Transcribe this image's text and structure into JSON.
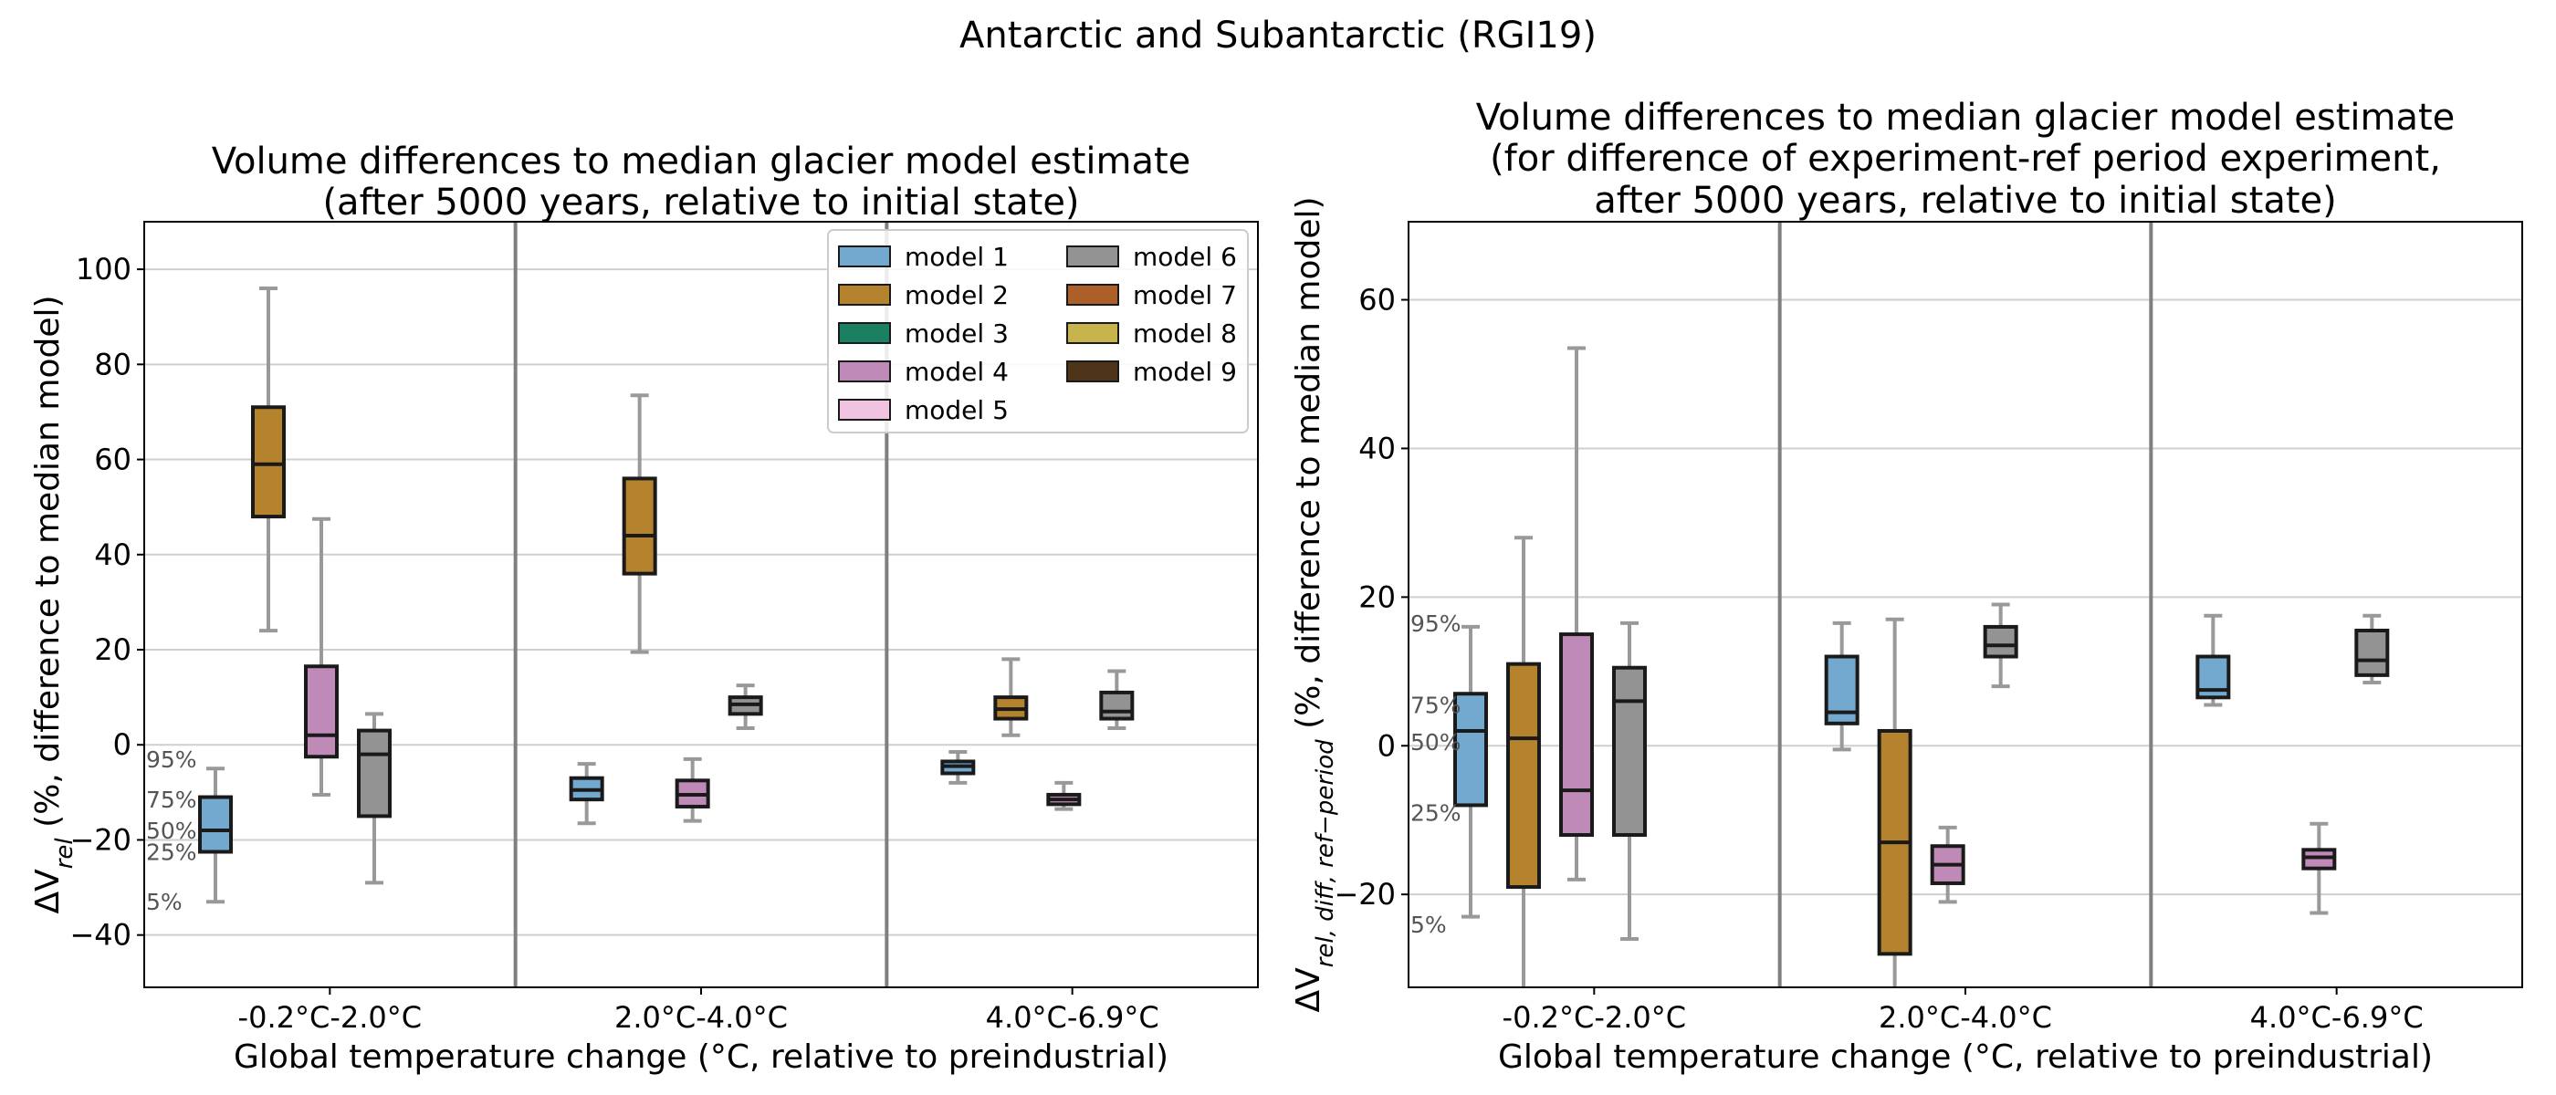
{
  "title": "Antarctic and Subantarctic (RGI19)",
  "legend": [
    {
      "name": "model 1",
      "color": "#74a9cf"
    },
    {
      "name": "model 2",
      "color": "#b5832e"
    },
    {
      "name": "model 3",
      "color": "#1b7f62"
    },
    {
      "name": "model 4",
      "color": "#c08ab8"
    },
    {
      "name": "model 5",
      "color": "#f0c3e0"
    },
    {
      "name": "model 6",
      "color": "#939393"
    },
    {
      "name": "model 7",
      "color": "#ad5f29"
    },
    {
      "name": "model 8",
      "color": "#c8b44d"
    },
    {
      "name": "model 9",
      "color": "#4e3519"
    }
  ],
  "percentile_labels": [
    "95%",
    "75%",
    "50%",
    "25%",
    "5%"
  ],
  "chart_data": [
    {
      "type": "box",
      "title_lines": [
        "Volume differences to median glacier model estimate",
        "(after 5000 years, relative to initial state)"
      ],
      "xlabel": "Global temperature change (°C, relative to preindustrial)",
      "ylabel": "ΔV_rel (%, difference to median model)",
      "ylim": [
        -51,
        110
      ],
      "yticks": [
        -40,
        -20,
        0,
        20,
        40,
        60,
        80,
        100
      ],
      "grid": "horizontal",
      "legend_position": "top-right",
      "categories": [
        "-0.2°C-2.0°C",
        "2.0°C-4.0°C",
        "4.0°C-6.9°C"
      ],
      "percentile_label_values": [
        -3,
        -11.5,
        -18,
        -22.5,
        -33
      ],
      "boxes": [
        {
          "category": 0,
          "model": "model 1",
          "p5": -33,
          "p25": -22.5,
          "p50": -18,
          "p75": -11,
          "p95": -5
        },
        {
          "category": 0,
          "model": "model 2",
          "p5": 24,
          "p25": 48,
          "p50": 59,
          "p75": 71,
          "p95": 96
        },
        {
          "category": 0,
          "model": "model 4",
          "p5": -10.5,
          "p25": -2.5,
          "p50": 2,
          "p75": 16.5,
          "p95": 47.5
        },
        {
          "category": 0,
          "model": "model 6",
          "p5": -29,
          "p25": -15,
          "p50": -2,
          "p75": 3,
          "p95": 6.5
        },
        {
          "category": 1,
          "model": "model 1",
          "p5": -16.5,
          "p25": -11.5,
          "p50": -9.5,
          "p75": -7,
          "p95": -4
        },
        {
          "category": 1,
          "model": "model 2",
          "p5": 19.5,
          "p25": 36,
          "p50": 44,
          "p75": 56,
          "p95": 73.5
        },
        {
          "category": 1,
          "model": "model 4",
          "p5": -16,
          "p25": -13,
          "p50": -10.5,
          "p75": -7.5,
          "p95": -3
        },
        {
          "category": 1,
          "model": "model 6",
          "p5": 3.5,
          "p25": 6.5,
          "p50": 8.5,
          "p75": 10,
          "p95": 12.5
        },
        {
          "category": 2,
          "model": "model 1",
          "p5": -8,
          "p25": -6,
          "p50": -4.5,
          "p75": -3.5,
          "p95": -1.5
        },
        {
          "category": 2,
          "model": "model 2",
          "p5": 2,
          "p25": 5.5,
          "p50": 7.5,
          "p75": 10,
          "p95": 18
        },
        {
          "category": 2,
          "model": "model 4",
          "p5": -13.5,
          "p25": -12.5,
          "p50": -11.5,
          "p75": -10.5,
          "p95": -8
        },
        {
          "category": 2,
          "model": "model 6",
          "p5": 3.5,
          "p25": 5.5,
          "p50": 7,
          "p75": 11,
          "p95": 15.5
        }
      ]
    },
    {
      "type": "box",
      "title_lines": [
        "Volume differences to median glacier model estimate",
        "(for difference of experiment-ref period experiment,",
        "after 5000 years, relative to initial state)"
      ],
      "xlabel": "Global temperature change (°C, relative to preindustrial)",
      "ylabel": "ΔV_rel,diff,ref−period (%, difference to median model)",
      "ylim": [
        -32.5,
        70.5
      ],
      "yticks": [
        -20,
        0,
        20,
        40,
        60
      ],
      "grid": "horizontal",
      "categories": [
        "-0.2°C-2.0°C",
        "2.0°C-4.0°C",
        "4.0°C-6.9°C"
      ],
      "percentile_label_values": [
        16.5,
        5.5,
        0.5,
        -9,
        -24
      ],
      "boxes": [
        {
          "category": 0,
          "model": "model 1",
          "p5": -23,
          "p25": -8,
          "p50": 2,
          "p75": 7,
          "p95": 16
        },
        {
          "category": 0,
          "model": "model 2",
          "p5": -33,
          "p25": -19,
          "p50": 1,
          "p75": 11,
          "p95": 28
        },
        {
          "category": 0,
          "model": "model 4",
          "p5": -18,
          "p25": -12,
          "p50": -6,
          "p75": 15,
          "p95": 53.5
        },
        {
          "category": 0,
          "model": "model 6",
          "p5": -26,
          "p25": -12,
          "p50": 6,
          "p75": 10.5,
          "p95": 16.5
        },
        {
          "category": 1,
          "model": "model 1",
          "p5": -0.5,
          "p25": 3,
          "p50": 4.5,
          "p75": 12,
          "p95": 16.5
        },
        {
          "category": 1,
          "model": "model 2",
          "p5": -33,
          "p25": -28,
          "p50": -13,
          "p75": 2,
          "p95": 17
        },
        {
          "category": 1,
          "model": "model 4",
          "p5": -21,
          "p25": -18.5,
          "p50": -16,
          "p75": -13.5,
          "p95": -11
        },
        {
          "category": 1,
          "model": "model 6",
          "p5": 8,
          "p25": 12,
          "p50": 13.5,
          "p75": 16,
          "p95": 19
        },
        {
          "category": 2,
          "model": "model 1",
          "p5": 5.5,
          "p25": 6.5,
          "p50": 7.5,
          "p75": 12,
          "p95": 17.5
        },
        {
          "category": 2,
          "model": "model 4",
          "p5": -22.5,
          "p25": -16.5,
          "p50": -15,
          "p75": -14,
          "p95": -10.5
        },
        {
          "category": 2,
          "model": "model 6",
          "p5": 8.5,
          "p25": 9.5,
          "p50": 11.5,
          "p75": 15.5,
          "p95": 17.5
        }
      ]
    }
  ]
}
